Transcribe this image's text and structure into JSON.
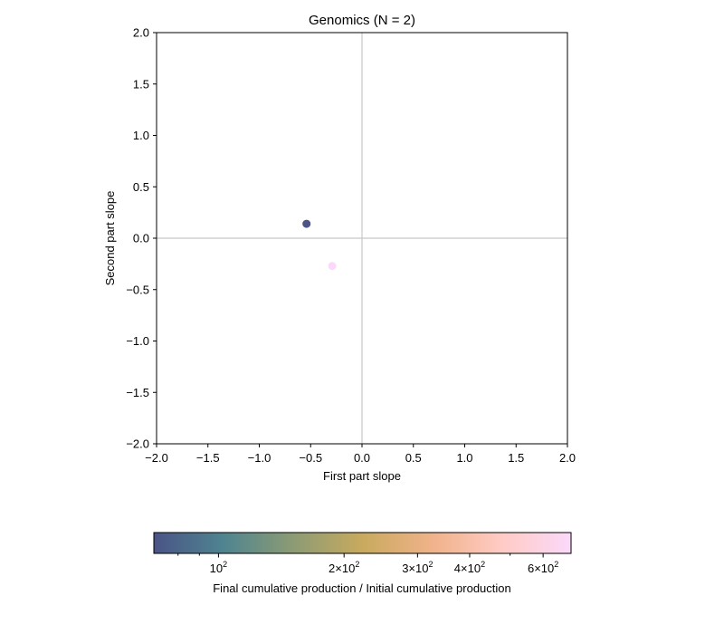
{
  "chart_data": {
    "type": "scatter",
    "title": "Genomics (N = 2)",
    "xlabel": "First part slope",
    "ylabel": "Second part slope",
    "xlim": [
      -2.0,
      2.0
    ],
    "ylim": [
      -2.0,
      2.0
    ],
    "xticks": [
      -2.0,
      -1.5,
      -1.0,
      -0.5,
      0.0,
      0.5,
      1.0,
      1.5,
      2.0
    ],
    "yticks": [
      -2.0,
      -1.5,
      -1.0,
      -0.5,
      0.0,
      0.5,
      1.0,
      1.5,
      2.0
    ],
    "xtick_labels": [
      "−2.0",
      "−1.5",
      "−1.0",
      "−0.5",
      "0.0",
      "0.5",
      "1.0",
      "1.5",
      "2.0"
    ],
    "ytick_labels": [
      "−2.0",
      "−1.5",
      "−1.0",
      "−0.5",
      "0.0",
      "0.5",
      "1.0",
      "1.5",
      "2.0"
    ],
    "reference_lines": {
      "x": 0,
      "y": 0
    },
    "grid": false,
    "points": [
      {
        "x": -0.54,
        "y": 0.14,
        "color_value": 70
      },
      {
        "x": -0.29,
        "y": -0.27,
        "color_value": 700
      }
    ],
    "colorbar": {
      "label": "Final cumulative production / Initial cumulative production",
      "scale": "log",
      "range": [
        70,
        700
      ],
      "colormap": [
        "#4a5486",
        "#4f8490",
        "#8c9b74",
        "#c8aa5e",
        "#f0b28a",
        "#ffcbc4",
        "#fbd9fb"
      ],
      "tick_values": [
        100,
        200,
        300,
        400,
        600
      ],
      "tick_labels": [
        {
          "base": "10",
          "exp": "2"
        },
        {
          "base": "2×10",
          "exp": "2"
        },
        {
          "base": "3×10",
          "exp": "2"
        },
        {
          "base": "4×10",
          "exp": "2"
        },
        {
          "base": "6×10",
          "exp": "2"
        }
      ],
      "minor_tick_values": [
        80,
        90,
        500
      ]
    }
  }
}
